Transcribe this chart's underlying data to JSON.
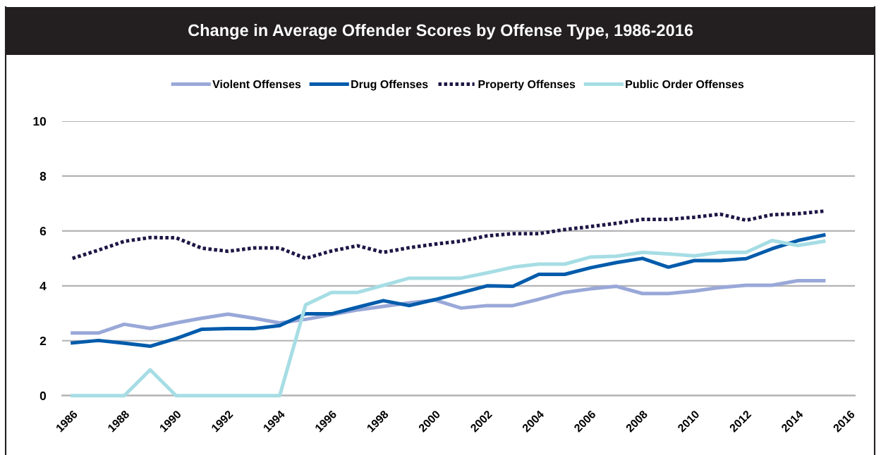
{
  "chart_data": {
    "type": "line",
    "title": "Change in Average Offender Scores by Offense Type, 1986-2016",
    "x": [
      1986,
      1987,
      1988,
      1989,
      1990,
      1991,
      1992,
      1993,
      1994,
      1995,
      1996,
      1997,
      1998,
      1999,
      2000,
      2001,
      2002,
      2003,
      2004,
      2005,
      2006,
      2007,
      2008,
      2009,
      2010,
      2011,
      2012,
      2013,
      2014,
      2015
    ],
    "xlim": [
      1985.6,
      2016.2
    ],
    "xticks": [
      1986,
      1988,
      1990,
      1992,
      1994,
      1996,
      1998,
      2000,
      2002,
      2004,
      2006,
      2008,
      2010,
      2012,
      2014,
      2016
    ],
    "ylim": [
      0,
      10
    ],
    "yticks": [
      0,
      2,
      4,
      6,
      8,
      10
    ],
    "grid": "y",
    "legend": "top",
    "series": [
      {
        "name": "Violent Offenses",
        "color": "#99a8d8",
        "line_style": "solid",
        "values": [
          2.28,
          2.28,
          2.6,
          2.45,
          2.65,
          2.82,
          2.97,
          2.82,
          2.65,
          2.78,
          2.95,
          3.12,
          3.25,
          3.38,
          3.48,
          3.19,
          3.28,
          3.28,
          3.51,
          3.76,
          3.89,
          3.98,
          3.72,
          3.72,
          3.81,
          3.94,
          4.02,
          4.02,
          4.19,
          4.19
        ]
      },
      {
        "name": "Drug Offenses",
        "color": "#005bab",
        "line_style": "solid",
        "values": [
          1.92,
          2.01,
          1.91,
          1.8,
          2.08,
          2.42,
          2.44,
          2.44,
          2.55,
          2.98,
          2.98,
          3.22,
          3.46,
          3.28,
          3.5,
          3.75,
          4.0,
          3.98,
          4.42,
          4.42,
          4.66,
          4.85,
          5.0,
          4.68,
          4.92,
          4.92,
          4.99,
          5.35,
          5.65,
          5.85
        ]
      },
      {
        "name": "Property Offenses",
        "color": "#1c1745",
        "line_style": "dotted",
        "values": [
          5.0,
          5.3,
          5.62,
          5.76,
          5.75,
          5.37,
          5.26,
          5.38,
          5.38,
          5.0,
          5.27,
          5.46,
          5.22,
          5.39,
          5.52,
          5.63,
          5.82,
          5.9,
          5.9,
          6.05,
          6.16,
          6.28,
          6.42,
          6.42,
          6.5,
          6.61,
          6.39,
          6.59,
          6.63,
          6.72
        ]
      },
      {
        "name": "Public Order Offenses",
        "color": "#a6dde4",
        "line_style": "solid",
        "values": [
          0,
          0,
          0,
          0.94,
          0,
          0,
          0,
          0,
          0,
          3.31,
          3.76,
          3.76,
          4.02,
          4.28,
          4.28,
          4.28,
          4.47,
          4.68,
          4.79,
          4.79,
          5.05,
          5.08,
          5.22,
          5.16,
          5.09,
          5.22,
          5.22,
          5.65,
          5.47,
          5.62
        ]
      }
    ]
  }
}
